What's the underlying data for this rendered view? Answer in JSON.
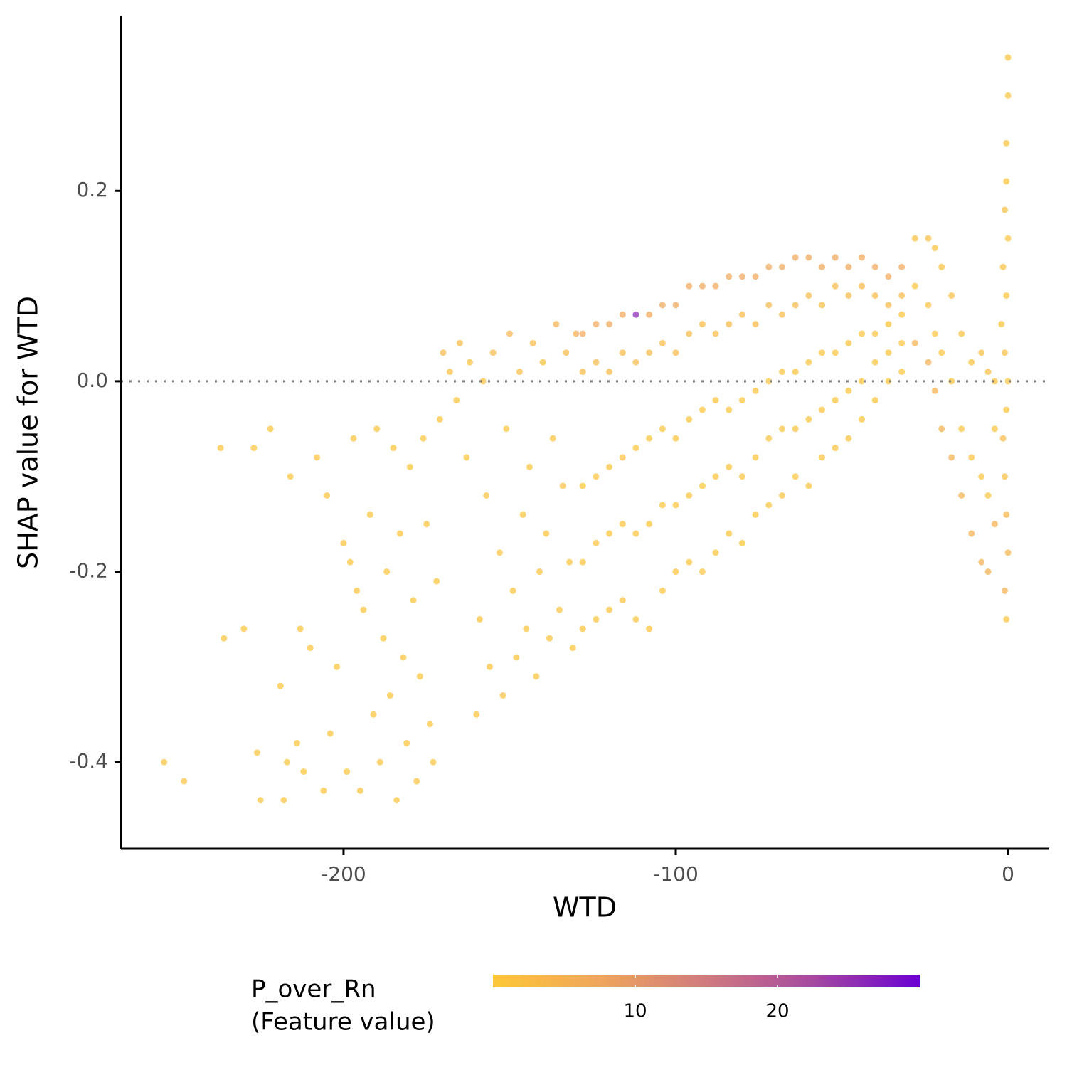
{
  "chart_data": {
    "type": "scatter",
    "x_label": "WTD",
    "y_label": "SHAP value for WTD",
    "xlim": [
      -267,
      12.4
    ],
    "ylim": [
      -0.491,
      0.384
    ],
    "xticks": [
      -200,
      -100,
      0
    ],
    "yticks": [
      -0.4,
      -0.2,
      {
        "value": 0,
        "label": "0.0"
      },
      0.2
    ],
    "hline": 0,
    "x": [
      -254,
      -248,
      -237,
      -236,
      -230,
      -227,
      -226,
      -225,
      -222,
      -219,
      -218,
      -217,
      -216,
      -214,
      -213,
      -212,
      -210,
      -208,
      -206,
      -205,
      -204,
      -202,
      -200,
      -199,
      -198,
      -197,
      -196,
      -195,
      -194,
      -192,
      -191,
      -190,
      -189,
      -188,
      -187,
      -186,
      -185,
      -184,
      -183,
      -182,
      -181,
      -180,
      -179,
      -178,
      -177,
      -176,
      -175,
      -174,
      -173,
      -172,
      -171,
      -170,
      -168,
      -166,
      -165,
      -163,
      -162,
      -160,
      -159,
      -158,
      -157,
      -156,
      -155,
      -153,
      -152,
      -151,
      -150,
      -149,
      -148,
      -147,
      -146,
      -145,
      -144,
      -143,
      -142,
      -141,
      -140,
      -139,
      -138,
      -137,
      -136,
      -135,
      -134,
      -133,
      -132,
      -131,
      -130,
      -128,
      -128,
      -128,
      -128,
      -128,
      -124,
      -124,
      -124,
      -124,
      -124,
      -120,
      -120,
      -120,
      -120,
      -120,
      -116,
      -116,
      -116,
      -116,
      -116,
      -112,
      -112,
      -112,
      -112,
      -112,
      -108,
      -108,
      -108,
      -108,
      -108,
      -104,
      -104,
      -104,
      -104,
      -104,
      -100,
      -100,
      -100,
      -100,
      -100,
      -96,
      -96,
      -96,
      -96,
      -96,
      -92,
      -92,
      -92,
      -92,
      -92,
      -88,
      -88,
      -88,
      -88,
      -88,
      -84,
      -84,
      -84,
      -84,
      -84,
      -80,
      -80,
      -80,
      -80,
      -80,
      -76,
      -76,
      -76,
      -76,
      -76,
      -72,
      -72,
      -72,
      -72,
      -72,
      -68,
      -68,
      -68,
      -68,
      -68,
      -64,
      -64,
      -64,
      -64,
      -64,
      -60,
      -60,
      -60,
      -60,
      -60,
      -56,
      -56,
      -56,
      -56,
      -56,
      -52,
      -52,
      -52,
      -52,
      -52,
      -48,
      -48,
      -48,
      -48,
      -48,
      -44,
      -44,
      -44,
      -44,
      -44,
      -40,
      -40,
      -40,
      -40,
      -40,
      -36,
      -36,
      -36,
      -36,
      -36,
      -32,
      -32,
      -32,
      -32,
      -32,
      -28,
      -28,
      -28,
      -24,
      -24,
      -24,
      -22,
      -22,
      -22,
      -20,
      -20,
      -20,
      -17,
      -17,
      -17,
      -14,
      -14,
      -14,
      -11,
      -11,
      -11,
      -8,
      -8,
      -8,
      -6,
      -6,
      -6,
      -4,
      -4,
      -4,
      0,
      0,
      -0.5,
      -0.5,
      -1,
      0,
      -1.5,
      -0.5,
      -2,
      -1,
      0,
      -0.5,
      -1.5,
      -1,
      -0.5,
      0,
      -1,
      -0.5
    ],
    "values": [
      -0.4,
      -0.42,
      -0.07,
      -0.27,
      -0.26,
      -0.07,
      -0.39,
      -0.44,
      -0.05,
      -0.32,
      -0.44,
      -0.4,
      -0.1,
      -0.38,
      -0.26,
      -0.41,
      -0.28,
      -0.08,
      -0.43,
      -0.12,
      -0.37,
      -0.3,
      -0.17,
      -0.41,
      -0.19,
      -0.06,
      -0.22,
      -0.43,
      -0.24,
      -0.14,
      -0.35,
      -0.05,
      -0.4,
      -0.27,
      -0.2,
      -0.33,
      -0.07,
      -0.44,
      -0.16,
      -0.29,
      -0.38,
      -0.09,
      -0.23,
      -0.42,
      -0.31,
      -0.06,
      -0.15,
      -0.36,
      -0.4,
      -0.21,
      -0.04,
      0.03,
      0.01,
      -0.02,
      0.04,
      -0.08,
      0.02,
      -0.35,
      -0.25,
      0.0,
      -0.12,
      -0.3,
      0.03,
      -0.18,
      -0.33,
      -0.05,
      0.05,
      -0.22,
      -0.29,
      0.01,
      -0.14,
      -0.26,
      -0.09,
      0.04,
      -0.31,
      -0.2,
      0.02,
      -0.16,
      -0.27,
      -0.06,
      0.06,
      -0.24,
      -0.11,
      0.03,
      -0.19,
      -0.28,
      0.05,
      0.05,
      0.01,
      -0.11,
      -0.19,
      -0.26,
      0.06,
      0.02,
      -0.1,
      -0.17,
      -0.25,
      0.06,
      0.01,
      -0.09,
      -0.16,
      -0.24,
      0.07,
      0.03,
      -0.08,
      -0.15,
      -0.23,
      0.07,
      0.02,
      -0.07,
      -0.16,
      -0.25,
      0.07,
      0.03,
      -0.06,
      -0.15,
      -0.26,
      0.08,
      0.04,
      -0.05,
      -0.13,
      -0.22,
      0.08,
      0.03,
      -0.06,
      -0.13,
      -0.2,
      0.1,
      0.05,
      -0.04,
      -0.12,
      -0.19,
      0.1,
      0.06,
      -0.03,
      -0.11,
      -0.2,
      0.1,
      0.05,
      -0.02,
      -0.1,
      -0.18,
      0.11,
      0.06,
      -0.03,
      -0.09,
      -0.16,
      0.11,
      0.07,
      -0.02,
      -0.1,
      -0.17,
      0.11,
      0.06,
      -0.01,
      -0.08,
      -0.14,
      0.12,
      0.08,
      0.0,
      -0.06,
      -0.13,
      0.12,
      0.07,
      0.01,
      -0.05,
      -0.12,
      0.13,
      0.08,
      0.01,
      -0.05,
      -0.1,
      0.13,
      0.09,
      0.02,
      -0.04,
      -0.11,
      0.12,
      0.08,
      0.03,
      -0.03,
      -0.08,
      0.13,
      0.1,
      0.03,
      -0.02,
      -0.07,
      0.12,
      0.09,
      0.04,
      -0.01,
      -0.06,
      0.13,
      0.1,
      0.05,
      0.0,
      -0.04,
      0.12,
      0.09,
      0.05,
      0.02,
      -0.02,
      0.11,
      0.08,
      0.06,
      0.03,
      0.0,
      0.12,
      0.09,
      0.07,
      0.04,
      0.01,
      0.15,
      0.1,
      0.04,
      0.15,
      0.08,
      0.02,
      0.14,
      0.05,
      -0.01,
      0.12,
      0.03,
      -0.05,
      0.09,
      0.0,
      -0.08,
      0.05,
      -0.05,
      -0.12,
      0.02,
      -0.08,
      -0.16,
      0.03,
      -0.1,
      -0.19,
      0.01,
      -0.12,
      -0.2,
      0.0,
      -0.05,
      -0.15,
      0.34,
      0.3,
      0.25,
      0.21,
      0.18,
      0.15,
      0.12,
      0.09,
      0.06,
      0.03,
      0.0,
      -0.03,
      -0.06,
      -0.1,
      -0.14,
      -0.18,
      -0.22,
      -0.25
    ],
    "color_values": [
      1,
      1,
      1,
      1,
      1,
      1,
      1,
      1,
      1,
      1,
      1,
      1,
      1,
      1,
      1,
      1,
      1,
      1,
      1,
      1,
      1,
      1,
      1,
      1,
      1,
      1,
      1,
      1,
      1,
      1,
      1,
      1,
      1,
      1,
      1,
      1,
      1,
      1,
      1,
      1,
      1,
      1,
      1,
      1,
      1,
      1,
      1,
      1,
      1,
      1,
      1,
      3,
      2,
      1,
      3,
      1,
      2,
      1,
      1,
      2,
      1,
      1,
      3,
      1,
      1,
      1,
      4,
      1,
      1,
      2,
      1,
      1,
      1,
      3,
      1,
      1,
      2,
      1,
      1,
      1,
      5,
      1,
      1,
      3,
      1,
      1,
      6,
      7,
      3,
      1,
      1,
      1,
      7,
      3,
      1,
      1,
      1,
      7,
      3,
      1,
      1,
      1,
      7,
      3,
      1,
      1,
      1,
      26,
      3,
      1,
      1,
      1,
      7,
      3,
      1,
      1,
      1,
      7,
      3,
      1,
      1,
      1,
      7,
      3,
      1,
      1,
      1,
      7,
      3,
      1,
      1,
      1,
      7,
      3,
      1,
      1,
      1,
      7,
      3,
      1,
      1,
      1,
      7,
      3,
      1,
      1,
      1,
      7,
      3,
      1,
      1,
      1,
      7,
      3,
      1,
      1,
      1,
      7,
      3,
      1,
      1,
      1,
      7,
      3,
      1,
      1,
      1,
      7,
      3,
      1,
      1,
      1,
      7,
      3,
      1,
      1,
      1,
      7,
      3,
      1,
      1,
      1,
      7,
      3,
      1,
      1,
      1,
      7,
      3,
      1,
      1,
      1,
      7,
      3,
      1,
      1,
      1,
      7,
      3,
      1,
      1,
      1,
      7,
      3,
      1,
      1,
      1,
      7,
      3,
      1,
      1,
      1,
      2,
      1,
      5,
      2,
      1,
      5,
      2,
      1,
      5,
      2,
      1,
      5,
      2,
      1,
      5,
      2,
      1,
      5,
      2,
      1,
      5,
      2,
      1,
      5,
      2,
      1,
      5,
      2,
      1,
      5,
      1,
      1,
      1,
      1,
      2,
      1,
      2,
      1,
      1,
      2,
      1,
      1,
      3,
      2,
      4,
      4,
      5,
      1
    ],
    "colorscale": [
      "#FDC836",
      "#EFA55B",
      "#D07A7F",
      "#A54A9F",
      "#6A00D3"
    ],
    "colorbar_title": [
      "P_over_Rn",
      "(Feature value)"
    ],
    "clim": [
      0,
      30
    ],
    "colorbar_ticks": [
      10,
      20
    ]
  }
}
